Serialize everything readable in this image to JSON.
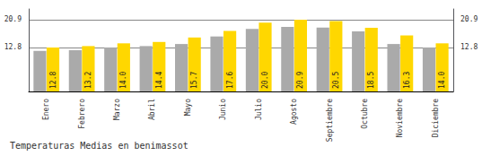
{
  "chart_data": {
    "type": "bar",
    "title": "Temperaturas Medias en benimassot",
    "categories": [
      "Enero",
      "Febrero",
      "Marzo",
      "Abril",
      "Mayo",
      "Junio",
      "Julio",
      "Agosto",
      "Septiembre",
      "Octubre",
      "Noviembre",
      "Diciembre"
    ],
    "series": [
      {
        "color": "#AAAAAA",
        "values": [
          11.8,
          12.0,
          12.8,
          13.2,
          13.8,
          16.0,
          18.2,
          18.8,
          18.6,
          17.5,
          13.8,
          12.8
        ]
      },
      {
        "color": "#FFD700",
        "values": [
          12.8,
          13.2,
          14.0,
          14.4,
          15.7,
          17.6,
          20.0,
          20.9,
          20.5,
          18.5,
          16.3,
          14.0
        ],
        "data_labels": true,
        "value_labels": [
          "12.8",
          "13.2",
          "14.0",
          "14.4",
          "15.7",
          "17.6",
          "20.0",
          "20.9",
          "20.5",
          "18.5",
          "16.3",
          "14.0"
        ]
      }
    ],
    "ylim": [
      0.0,
      24.0
    ],
    "yticks": [
      12.8,
      20.9
    ],
    "y2lim": [
      0.0,
      24.0
    ],
    "y2ticks": [
      12.8,
      20.9
    ],
    "grid": true
  }
}
